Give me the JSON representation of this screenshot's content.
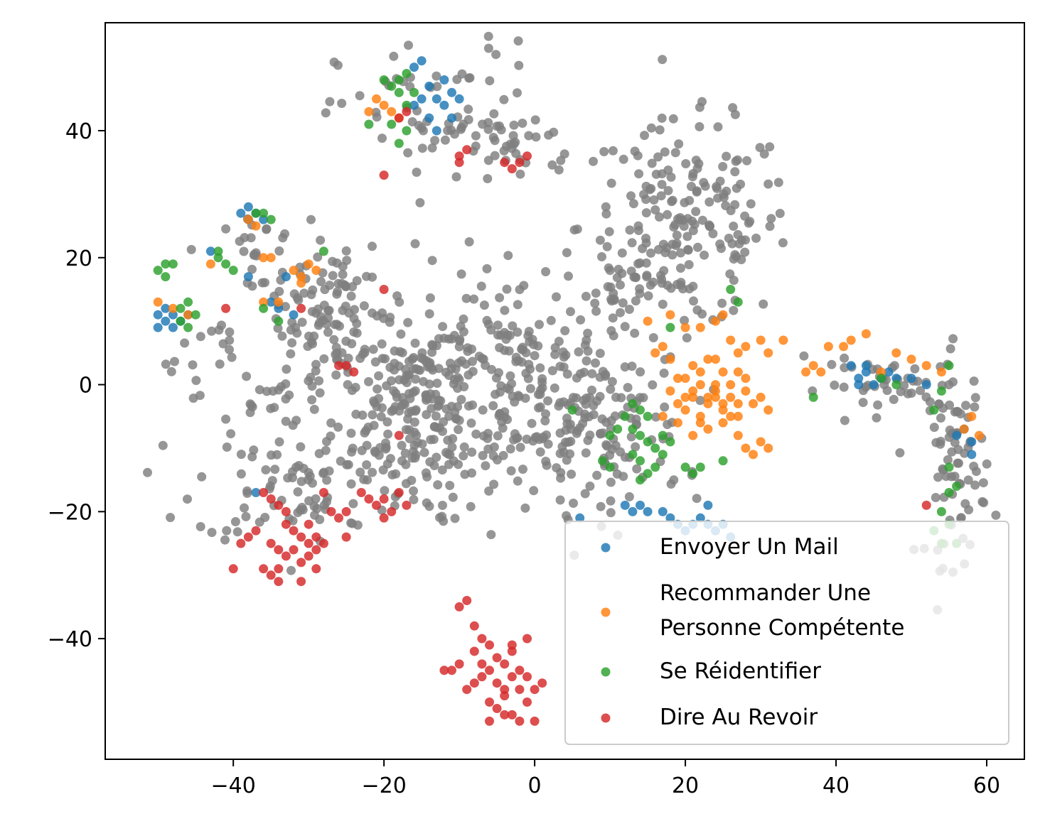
{
  "chart_data": {
    "type": "scatter",
    "title": "",
    "xlabel": "",
    "ylabel": "",
    "xlim": [
      -57,
      65
    ],
    "ylim": [
      -59,
      57
    ],
    "x_ticks": [
      -40,
      -20,
      0,
      20,
      40,
      60
    ],
    "y_ticks": [
      -40,
      -20,
      0,
      20,
      40
    ],
    "x_tick_labels": [
      "−40",
      "−20",
      "0",
      "20",
      "40",
      "60"
    ],
    "y_tick_labels": [
      "−40",
      "−20",
      "0",
      "20",
      "40"
    ],
    "grid": false,
    "legend_position": "lower-right",
    "background_color": "#7f7f7f",
    "series": [
      {
        "name": "Envoyer Un Mail",
        "color": "#1f77b4",
        "legend_lines": [
          "Envoyer Un Mail"
        ],
        "points": [
          [
            -50,
            11
          ],
          [
            -49,
            10
          ],
          [
            -48,
            11
          ],
          [
            -50,
            9
          ],
          [
            -49,
            12
          ],
          [
            -47,
            10
          ],
          [
            -48,
            9
          ],
          [
            -46,
            11
          ],
          [
            -39,
            27
          ],
          [
            -38,
            26
          ],
          [
            -37,
            27
          ],
          [
            -38,
            28
          ],
          [
            -36,
            26
          ],
          [
            -35,
            13
          ],
          [
            -34,
            12
          ],
          [
            -33,
            17
          ],
          [
            -32,
            11
          ],
          [
            -38,
            17
          ],
          [
            -43,
            21
          ],
          [
            -16,
            50
          ],
          [
            -15,
            51
          ],
          [
            -14,
            47
          ],
          [
            -13,
            45
          ],
          [
            -12,
            44
          ],
          [
            -11,
            46
          ],
          [
            -14,
            42
          ],
          [
            -13,
            40
          ],
          [
            -10,
            45
          ],
          [
            -15,
            45
          ],
          [
            -12,
            48
          ],
          [
            -16,
            44
          ],
          [
            -11,
            42
          ],
          [
            42,
            3
          ],
          [
            43,
            1
          ],
          [
            44,
            2
          ],
          [
            45,
            0
          ],
          [
            46,
            1
          ],
          [
            47,
            2
          ],
          [
            43,
            0
          ],
          [
            48,
            1
          ],
          [
            50,
            1
          ],
          [
            52,
            0
          ],
          [
            44,
            3
          ],
          [
            57,
            -7
          ],
          [
            58,
            -9
          ],
          [
            58,
            -11
          ],
          [
            56,
            -8
          ],
          [
            12,
            -19
          ],
          [
            13,
            -20
          ],
          [
            14,
            -19
          ],
          [
            15,
            -20
          ],
          [
            17,
            -20
          ],
          [
            18,
            -21
          ],
          [
            21,
            -22
          ],
          [
            22,
            -21
          ],
          [
            23,
            -22
          ],
          [
            24,
            -23
          ],
          [
            25,
            -22
          ],
          [
            26,
            -24
          ],
          [
            23,
            -19
          ],
          [
            20,
            -23
          ],
          [
            19,
            -22
          ],
          [
            -37,
            -17
          ],
          [
            6,
            -21
          ]
        ]
      },
      {
        "name": "Recommander Une Personne Compétente",
        "color": "#ff7f0e",
        "legend_lines": [
          "Recommander Une",
          "Personne Compétente"
        ],
        "points": [
          [
            -50,
            13
          ],
          [
            -48,
            12
          ],
          [
            -46,
            11
          ],
          [
            -38,
            26
          ],
          [
            -37,
            25
          ],
          [
            -36,
            20
          ],
          [
            -35,
            20
          ],
          [
            -36,
            13
          ],
          [
            -34,
            13
          ],
          [
            -32,
            18
          ],
          [
            -31,
            17
          ],
          [
            -30,
            19
          ],
          [
            -29,
            18
          ],
          [
            -31,
            16
          ],
          [
            -43,
            19
          ],
          [
            -21,
            45
          ],
          [
            -20,
            44
          ],
          [
            -19,
            43
          ],
          [
            -22,
            43
          ],
          [
            -18,
            42
          ],
          [
            16,
            5
          ],
          [
            17,
            6
          ],
          [
            18,
            4
          ],
          [
            20,
            9
          ],
          [
            22,
            9
          ],
          [
            24,
            10
          ],
          [
            25,
            11
          ],
          [
            26,
            7
          ],
          [
            27,
            5
          ],
          [
            28,
            6
          ],
          [
            30,
            7
          ],
          [
            31,
            5
          ],
          [
            18,
            -1
          ],
          [
            19,
            -3
          ],
          [
            20,
            -4
          ],
          [
            21,
            -2
          ],
          [
            22,
            -5
          ],
          [
            23,
            -3
          ],
          [
            24,
            -1
          ],
          [
            25,
            -4
          ],
          [
            26,
            -2
          ],
          [
            27,
            -5
          ],
          [
            22,
            -6
          ],
          [
            23,
            -7
          ],
          [
            24,
            -2
          ],
          [
            25,
            -3
          ],
          [
            26,
            0
          ],
          [
            27,
            2
          ],
          [
            28,
            -1
          ],
          [
            29,
            -3
          ],
          [
            30,
            -2
          ],
          [
            31,
            -4
          ],
          [
            20,
            1
          ],
          [
            21,
            3
          ],
          [
            22,
            2
          ],
          [
            23,
            4
          ],
          [
            24,
            0
          ],
          [
            25,
            -6
          ],
          [
            26,
            -5
          ],
          [
            27,
            -3
          ],
          [
            28,
            -10
          ],
          [
            29,
            -11
          ],
          [
            30,
            -9
          ],
          [
            31,
            -10
          ],
          [
            21,
            -8
          ],
          [
            19,
            -6
          ],
          [
            17,
            -5
          ],
          [
            19,
            1
          ],
          [
            24,
            4
          ],
          [
            28,
            1
          ],
          [
            21,
            -1
          ],
          [
            25,
            2
          ],
          [
            27,
            -8
          ],
          [
            23,
            -2
          ],
          [
            20,
            -2
          ],
          [
            22,
            0
          ],
          [
            36,
            2
          ],
          [
            37,
            3
          ],
          [
            38,
            2
          ],
          [
            39,
            6
          ],
          [
            41,
            6
          ],
          [
            42,
            7
          ],
          [
            44,
            8
          ],
          [
            46,
            2
          ],
          [
            48,
            5
          ],
          [
            50,
            4
          ],
          [
            52,
            3
          ],
          [
            54,
            2
          ],
          [
            58,
            -5
          ],
          [
            59,
            -8
          ],
          [
            57,
            -7
          ],
          [
            33,
            7
          ],
          [
            15,
            10
          ],
          [
            18,
            11
          ]
        ]
      },
      {
        "name": "Se Réidentifier",
        "color": "#2ca02c",
        "legend_lines": [
          "Se Réidentifier"
        ],
        "points": [
          [
            -50,
            18
          ],
          [
            -49,
            17
          ],
          [
            -48,
            19
          ],
          [
            -49,
            19
          ],
          [
            -47,
            12
          ],
          [
            -46,
            13
          ],
          [
            -45,
            11
          ],
          [
            -47,
            10
          ],
          [
            -46,
            9
          ],
          [
            -42,
            20
          ],
          [
            -41,
            19
          ],
          [
            -40,
            18
          ],
          [
            -42,
            21
          ],
          [
            -37,
            27
          ],
          [
            -36,
            27
          ],
          [
            -35,
            26
          ],
          [
            -36,
            12
          ],
          [
            -34,
            10
          ],
          [
            -28,
            21
          ],
          [
            -18,
            48
          ],
          [
            -17,
            49
          ],
          [
            -19,
            47
          ],
          [
            -18,
            46
          ],
          [
            -17,
            44
          ],
          [
            -19,
            41
          ],
          [
            -18,
            38
          ],
          [
            -17,
            40
          ],
          [
            -22,
            41
          ],
          [
            -16,
            46
          ],
          [
            -20,
            48
          ],
          [
            13,
            -3
          ],
          [
            14,
            -4
          ],
          [
            15,
            -5
          ],
          [
            13,
            -7
          ],
          [
            14,
            -8
          ],
          [
            15,
            -9
          ],
          [
            16,
            -10
          ],
          [
            17,
            -8
          ],
          [
            13,
            -11
          ],
          [
            14,
            -12
          ],
          [
            16,
            -13
          ],
          [
            17,
            -11
          ],
          [
            18,
            -9
          ],
          [
            12,
            -5
          ],
          [
            11,
            -7
          ],
          [
            10,
            -8
          ],
          [
            9,
            -12
          ],
          [
            10,
            -13
          ],
          [
            15,
            -14
          ],
          [
            14,
            -15
          ],
          [
            20,
            -13
          ],
          [
            21,
            -14
          ],
          [
            22,
            -13
          ],
          [
            25,
            -12
          ],
          [
            26,
            15
          ],
          [
            27,
            13
          ],
          [
            18,
            9
          ],
          [
            5,
            -4
          ],
          [
            37,
            -2
          ],
          [
            55,
            3
          ],
          [
            54,
            -1
          ],
          [
            53,
            -4
          ],
          [
            55,
            -13
          ],
          [
            56,
            -16
          ],
          [
            55,
            -17
          ],
          [
            54,
            -20
          ],
          [
            55,
            -22
          ],
          [
            53,
            -23
          ],
          [
            56,
            -25
          ],
          [
            54,
            -25
          ],
          [
            46,
            1
          ],
          [
            48,
            0
          ]
        ]
      },
      {
        "name": "Dire Au Revoir",
        "color": "#d62728",
        "legend_lines": [
          "Dire Au Revoir"
        ],
        "points": [
          [
            -36,
            -17
          ],
          [
            -35,
            -18
          ],
          [
            -34,
            -19
          ],
          [
            -33,
            -22
          ],
          [
            -32,
            -23
          ],
          [
            -31,
            -24
          ],
          [
            -30,
            -25
          ],
          [
            -29,
            -24
          ],
          [
            -35,
            -25
          ],
          [
            -34,
            -26
          ],
          [
            -33,
            -27
          ],
          [
            -32,
            -26
          ],
          [
            -31,
            -28
          ],
          [
            -30,
            -27
          ],
          [
            -29,
            -26
          ],
          [
            -28,
            -25
          ],
          [
            -36,
            -29
          ],
          [
            -35,
            -30
          ],
          [
            -34,
            -29
          ],
          [
            -38,
            -24
          ],
          [
            -39,
            -25
          ],
          [
            -37,
            -23
          ],
          [
            -40,
            -29
          ],
          [
            -33,
            -20
          ],
          [
            -30,
            -22
          ],
          [
            -29,
            -29
          ],
          [
            -27,
            -20
          ],
          [
            -26,
            -21
          ],
          [
            -28,
            -17
          ],
          [
            -25,
            -24
          ],
          [
            -31,
            -31
          ],
          [
            -34,
            -31
          ],
          [
            -22,
            -18
          ],
          [
            -21,
            -19
          ],
          [
            -20,
            -18
          ],
          [
            -19,
            -20
          ],
          [
            -18,
            -17
          ],
          [
            -17,
            -19
          ],
          [
            -23,
            -17
          ],
          [
            -20,
            -21
          ],
          [
            -9,
            -34
          ],
          [
            -10,
            -35
          ],
          [
            -8,
            -38
          ],
          [
            -7,
            -40
          ],
          [
            -6,
            -41
          ],
          [
            -5,
            -43
          ],
          [
            -4,
            -44
          ],
          [
            -3,
            -42
          ],
          [
            -2,
            -45
          ],
          [
            -1,
            -46
          ],
          [
            -6,
            -45
          ],
          [
            -5,
            -47
          ],
          [
            -4,
            -48
          ],
          [
            -3,
            -46
          ],
          [
            -7,
            -46
          ],
          [
            -8,
            -47
          ],
          [
            -9,
            -48
          ],
          [
            -6,
            -50
          ],
          [
            -5,
            -51
          ],
          [
            -4,
            -49
          ],
          [
            -3,
            -52
          ],
          [
            -2,
            -53
          ],
          [
            -1,
            -50
          ],
          [
            0,
            -48
          ],
          [
            1,
            -47
          ],
          [
            -2,
            -48
          ],
          [
            -7,
            -44
          ],
          [
            -8,
            -42
          ],
          [
            -11,
            -45
          ],
          [
            -12,
            -45
          ],
          [
            -1,
            -40
          ],
          [
            0,
            -53
          ],
          [
            -6,
            -53
          ],
          [
            -4,
            -52
          ],
          [
            -10,
            -44
          ],
          [
            -3,
            -41
          ],
          [
            -18,
            42
          ],
          [
            -17,
            43
          ],
          [
            -10,
            36
          ],
          [
            -9,
            37
          ],
          [
            -10,
            35
          ],
          [
            -4,
            35
          ],
          [
            -2,
            35
          ],
          [
            -1,
            36
          ],
          [
            -3,
            34
          ],
          [
            -20,
            33
          ],
          [
            -41,
            12
          ],
          [
            -31,
            12
          ],
          [
            -25,
            3
          ],
          [
            -26,
            3
          ],
          [
            -24,
            2
          ],
          [
            -20,
            15
          ],
          [
            -18,
            -8
          ],
          [
            -25,
            -20
          ],
          [
            52,
            -19
          ]
        ]
      }
    ]
  }
}
